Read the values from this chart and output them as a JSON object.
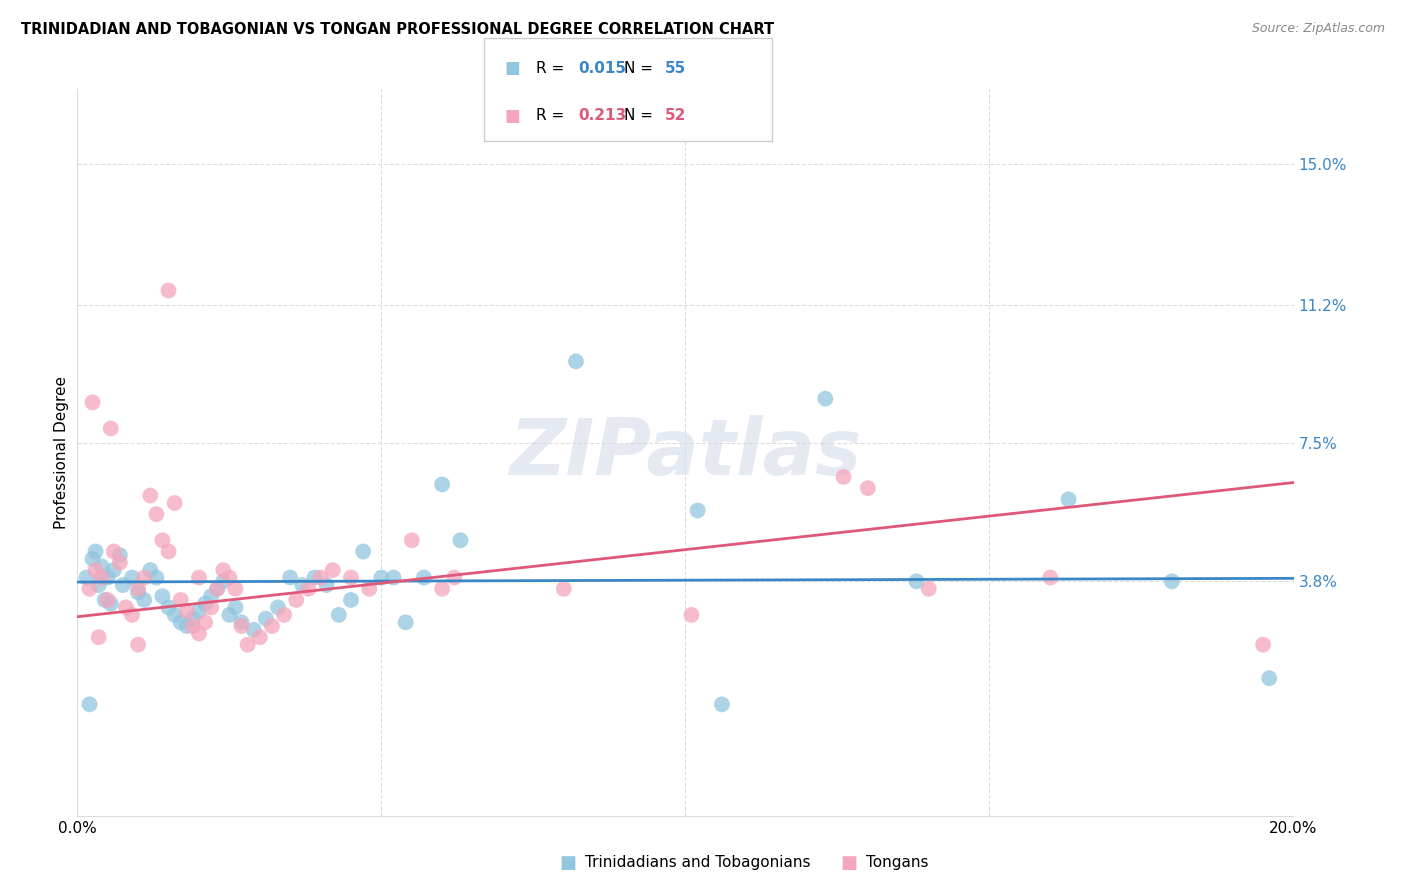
{
  "title": "TRINIDADIAN AND TOBAGONIAN VS TONGAN PROFESSIONAL DEGREE CORRELATION CHART",
  "source": "Source: ZipAtlas.com",
  "ylabel": "Professional Degree",
  "ytick_values": [
    15.0,
    11.2,
    7.5,
    3.8
  ],
  "xlim": [
    0.0,
    20.0
  ],
  "ylim": [
    -2.5,
    17.0
  ],
  "legend1_r": "0.015",
  "legend1_n": "55",
  "legend2_r": "0.213",
  "legend2_n": "52",
  "legend_label1": "Trinidadians and Tobagonians",
  "legend_label2": "Tongans",
  "color_blue": "#92c5de",
  "color_pink": "#f4a6bc",
  "line_blue": "#3a87c8",
  "line_pink": "#e05878",
  "watermark": "ZIPatlas",
  "blue_points": [
    [
      0.15,
      3.9
    ],
    [
      0.25,
      4.4
    ],
    [
      0.3,
      4.6
    ],
    [
      0.35,
      3.7
    ],
    [
      0.4,
      4.2
    ],
    [
      0.5,
      3.9
    ],
    [
      0.45,
      3.3
    ],
    [
      0.55,
      3.2
    ],
    [
      0.6,
      4.1
    ],
    [
      0.7,
      4.5
    ],
    [
      0.75,
      3.7
    ],
    [
      0.9,
      3.9
    ],
    [
      1.0,
      3.5
    ],
    [
      1.1,
      3.3
    ],
    [
      1.2,
      4.1
    ],
    [
      1.3,
      3.9
    ],
    [
      1.4,
      3.4
    ],
    [
      1.5,
      3.1
    ],
    [
      1.6,
      2.9
    ],
    [
      1.7,
      2.7
    ],
    [
      1.8,
      2.6
    ],
    [
      1.9,
      2.8
    ],
    [
      2.0,
      3.0
    ],
    [
      2.1,
      3.2
    ],
    [
      2.2,
      3.4
    ],
    [
      2.3,
      3.6
    ],
    [
      2.4,
      3.8
    ],
    [
      2.5,
      2.9
    ],
    [
      2.6,
      3.1
    ],
    [
      2.7,
      2.7
    ],
    [
      2.9,
      2.5
    ],
    [
      3.1,
      2.8
    ],
    [
      3.3,
      3.1
    ],
    [
      3.5,
      3.9
    ],
    [
      3.7,
      3.7
    ],
    [
      3.9,
      3.9
    ],
    [
      4.1,
      3.7
    ],
    [
      4.3,
      2.9
    ],
    [
      4.5,
      3.3
    ],
    [
      4.7,
      4.6
    ],
    [
      5.0,
      3.9
    ],
    [
      5.2,
      3.9
    ],
    [
      5.4,
      2.7
    ],
    [
      5.7,
      3.9
    ],
    [
      6.0,
      6.4
    ],
    [
      6.3,
      4.9
    ],
    [
      8.2,
      9.7
    ],
    [
      10.2,
      5.7
    ],
    [
      12.3,
      8.7
    ],
    [
      16.3,
      6.0
    ],
    [
      19.6,
      1.2
    ],
    [
      10.6,
      0.5
    ],
    [
      0.2,
      0.5
    ],
    [
      13.8,
      3.8
    ],
    [
      18.0,
      3.8
    ]
  ],
  "pink_points": [
    [
      0.2,
      3.6
    ],
    [
      0.3,
      4.1
    ],
    [
      0.4,
      3.9
    ],
    [
      0.5,
      3.3
    ],
    [
      0.6,
      4.6
    ],
    [
      0.7,
      4.3
    ],
    [
      0.8,
      3.1
    ],
    [
      0.9,
      2.9
    ],
    [
      1.0,
      3.6
    ],
    [
      1.1,
      3.9
    ],
    [
      1.2,
      6.1
    ],
    [
      1.3,
      5.6
    ],
    [
      1.4,
      4.9
    ],
    [
      1.5,
      4.6
    ],
    [
      1.6,
      5.9
    ],
    [
      1.7,
      3.3
    ],
    [
      1.8,
      3.0
    ],
    [
      1.9,
      2.6
    ],
    [
      2.0,
      2.4
    ],
    [
      2.1,
      2.7
    ],
    [
      2.2,
      3.1
    ],
    [
      2.3,
      3.6
    ],
    [
      2.4,
      4.1
    ],
    [
      2.5,
      3.9
    ],
    [
      2.6,
      3.6
    ],
    [
      2.7,
      2.6
    ],
    [
      2.8,
      2.1
    ],
    [
      3.0,
      2.3
    ],
    [
      3.2,
      2.6
    ],
    [
      3.4,
      2.9
    ],
    [
      3.6,
      3.3
    ],
    [
      3.8,
      3.6
    ],
    [
      4.0,
      3.9
    ],
    [
      4.2,
      4.1
    ],
    [
      1.5,
      11.6
    ],
    [
      4.5,
      3.9
    ],
    [
      4.8,
      3.6
    ],
    [
      5.5,
      4.9
    ],
    [
      6.0,
      3.6
    ],
    [
      6.2,
      3.9
    ],
    [
      8.0,
      3.6
    ],
    [
      10.1,
      2.9
    ],
    [
      12.6,
      6.6
    ],
    [
      13.0,
      6.3
    ],
    [
      0.25,
      8.6
    ],
    [
      0.55,
      7.9
    ],
    [
      0.35,
      2.3
    ],
    [
      1.0,
      2.1
    ],
    [
      19.5,
      2.1
    ],
    [
      14.0,
      3.6
    ],
    [
      16.0,
      3.9
    ],
    [
      2.0,
      3.9
    ]
  ],
  "blue_line": {
    "x0": 0.0,
    "x1": 20.0,
    "y0": 3.78,
    "y1": 3.88
  },
  "pink_line": {
    "x0": 0.0,
    "x1": 20.0,
    "y0": 2.85,
    "y1": 6.45
  }
}
